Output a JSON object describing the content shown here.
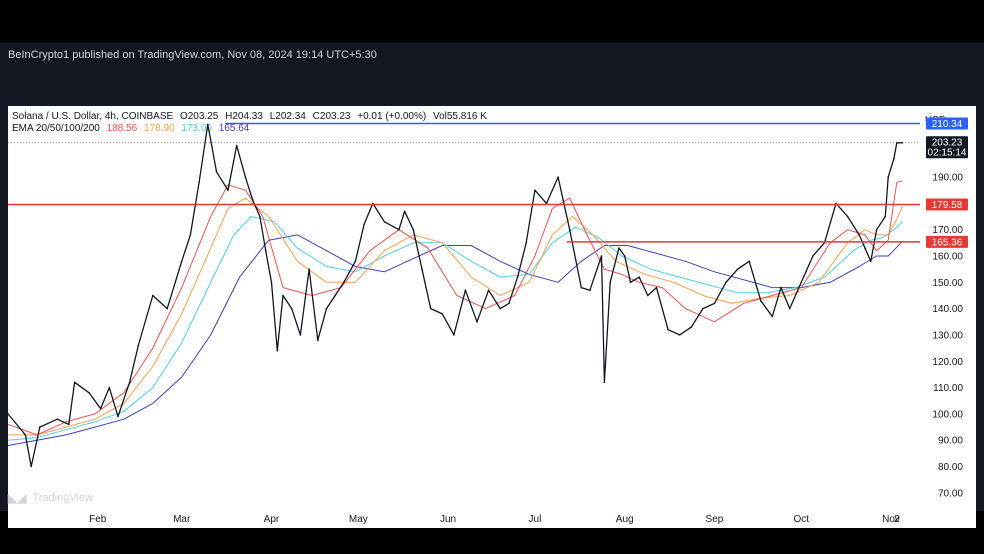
{
  "publisher": "BeInCrypto1 published on TradingView.com, Nov 08, 2024 19:14 UTC+5:30",
  "footer_brand": "TradingView",
  "header": {
    "symbol": "Solana / U.S. Dollar, 4h, COINBASE",
    "ohlc": [
      "O203.25",
      "H204.33",
      "L202.34",
      "C203.23",
      "+0.01 (+0.00%)",
      "Vol55.816 K"
    ],
    "ema_label": "EMA 20/50/100/200",
    "ema_values": [
      "188.56",
      "178.90",
      "173.00",
      "165.64"
    ],
    "currency": "USD"
  },
  "colors": {
    "candle": "#131722",
    "ema20": "#ef5350",
    "ema50": "#f7a14b",
    "ema100": "#4dd0e1",
    "ema200": "#3f3fbf",
    "blue_level": "#2962ff",
    "red_level": "#e53935",
    "price_tag_bg": "#131722"
  },
  "chart_data": {
    "type": "line",
    "title": "Solana / U.S. Dollar, 4h, COINBASE",
    "ylim": [
      65,
      217
    ],
    "y_ticks": [
      "70.00",
      "80.00",
      "90.00",
      "100.00",
      "110.00",
      "120.00",
      "130.00",
      "140.00",
      "150.00",
      "160.00",
      "170.00",
      "180.00",
      "190.00"
    ],
    "x_tick_labels": [
      "Feb",
      "Mar",
      "Apr",
      "May",
      "Jun",
      "Jul",
      "Aug",
      "Sep",
      "Oct",
      "Nov",
      "2"
    ],
    "x_tick_days": [
      31,
      60,
      91,
      121,
      152,
      182,
      213,
      244,
      274,
      305,
      307
    ],
    "x_range_days": [
      0,
      315
    ],
    "series": [
      {
        "name": "Price",
        "key": "price",
        "x": [
          0,
          6,
          8,
          11,
          17,
          21,
          23,
          28,
          32,
          35,
          38,
          42,
          45,
          50,
          55,
          60,
          63,
          66,
          69,
          72,
          76,
          79,
          82,
          84,
          85,
          87,
          89,
          91,
          93,
          95,
          98,
          101,
          104,
          107,
          110,
          113,
          116,
          120,
          123,
          126,
          130,
          135,
          137,
          140,
          143,
          146,
          150,
          154,
          158,
          162,
          166,
          170,
          173,
          176,
          179,
          182,
          186,
          190,
          194,
          198,
          201,
          205,
          206,
          208,
          211,
          213,
          215,
          218,
          221,
          224,
          228,
          232,
          236,
          240,
          244,
          248,
          252,
          256,
          260,
          264,
          267,
          270,
          274,
          278,
          282,
          286,
          290,
          294,
          296,
          298,
          300,
          303,
          304,
          306,
          307,
          309
        ],
        "y": [
          100,
          92,
          80,
          95,
          98,
          96,
          112,
          108,
          102,
          110,
          99,
          112,
          126,
          145,
          140,
          158,
          168,
          188,
          210,
          192,
          185,
          202,
          190,
          183,
          180,
          175,
          162,
          150,
          124,
          145,
          140,
          130,
          155,
          128,
          140,
          145,
          150,
          158,
          172,
          180,
          173,
          170,
          177,
          170,
          155,
          140,
          138,
          130,
          147,
          135,
          147,
          140,
          142,
          152,
          165,
          185,
          180,
          190,
          170,
          148,
          147,
          160,
          112,
          150,
          163,
          160,
          150,
          152,
          145,
          148,
          132,
          130,
          133,
          140,
          142,
          150,
          155,
          158,
          143,
          137,
          148,
          140,
          150,
          160,
          165,
          180,
          175,
          168,
          163,
          158,
          170,
          175,
          190,
          197,
          203,
          203
        ]
      },
      {
        "name": "EMA 20",
        "key": "ema20",
        "x": [
          0,
          10,
          20,
          30,
          40,
          50,
          60,
          70,
          76,
          82,
          88,
          95,
          105,
          115,
          125,
          135,
          145,
          155,
          165,
          175,
          182,
          188,
          194,
          200,
          206,
          212,
          218,
          226,
          234,
          244,
          254,
          264,
          274,
          284,
          290,
          296,
          300,
          304,
          307,
          309
        ],
        "y": [
          96,
          92,
          97,
          100,
          108,
          125,
          148,
          175,
          187,
          185,
          175,
          148,
          145,
          148,
          162,
          170,
          163,
          145,
          140,
          145,
          160,
          178,
          182,
          168,
          155,
          153,
          150,
          148,
          140,
          135,
          142,
          145,
          148,
          165,
          170,
          168,
          162,
          166,
          188,
          188.56
        ]
      },
      {
        "name": "EMA 50",
        "key": "ema50",
        "x": [
          0,
          10,
          20,
          30,
          40,
          50,
          60,
          70,
          76,
          82,
          90,
          100,
          110,
          120,
          130,
          140,
          150,
          160,
          170,
          180,
          188,
          195,
          202,
          210,
          220,
          230,
          240,
          250,
          260,
          270,
          280,
          290,
          296,
          300,
          304,
          307,
          309
        ],
        "y": [
          92,
          92,
          95,
          98,
          104,
          118,
          138,
          163,
          178,
          182,
          175,
          158,
          150,
          150,
          162,
          168,
          165,
          152,
          145,
          150,
          168,
          175,
          168,
          158,
          153,
          150,
          145,
          142,
          144,
          145,
          150,
          165,
          170,
          168,
          168,
          174,
          178.9
        ]
      },
      {
        "name": "EMA 100",
        "key": "ema100",
        "x": [
          0,
          10,
          20,
          30,
          40,
          50,
          60,
          70,
          78,
          84,
          92,
          100,
          110,
          120,
          130,
          140,
          150,
          160,
          170,
          180,
          188,
          196,
          204,
          212,
          222,
          232,
          242,
          252,
          262,
          272,
          282,
          292,
          298,
          302,
          306,
          309
        ],
        "y": [
          90,
          91,
          94,
          97,
          101,
          110,
          127,
          150,
          168,
          175,
          173,
          163,
          156,
          154,
          160,
          165,
          165,
          158,
          152,
          153,
          165,
          171,
          167,
          160,
          155,
          152,
          149,
          146,
          146,
          148,
          152,
          162,
          166,
          167,
          170,
          173
        ]
      },
      {
        "name": "EMA 200",
        "key": "ema200",
        "x": [
          0,
          10,
          20,
          30,
          40,
          50,
          60,
          70,
          80,
          90,
          100,
          110,
          120,
          130,
          140,
          150,
          160,
          170,
          180,
          190,
          198,
          206,
          214,
          224,
          234,
          244,
          254,
          264,
          274,
          284,
          294,
          300,
          304,
          309
        ],
        "y": [
          88,
          90,
          92,
          95,
          98,
          104,
          114,
          130,
          152,
          166,
          168,
          162,
          156,
          154,
          159,
          164,
          164,
          158,
          153,
          150,
          158,
          164,
          164,
          161,
          158,
          154,
          151,
          148,
          148,
          150,
          156,
          160,
          160,
          165.64
        ]
      }
    ],
    "levels": [
      {
        "label": "210.34",
        "value": 210.34,
        "color_key": "blue_level",
        "x_start": 75,
        "line": "solid"
      },
      {
        "label": "179.58",
        "value": 179.58,
        "color_key": "red_level",
        "x_start": 0,
        "line": "solid"
      },
      {
        "label": "165.36",
        "value": 165.36,
        "color_key": "red_level",
        "x_start": 193,
        "line": "solid"
      },
      {
        "label": "203.23",
        "sublabel": "02:15:14",
        "value": 203.23,
        "color_key": "price_tag_bg",
        "x_start": 0,
        "line": "dotted"
      }
    ]
  }
}
